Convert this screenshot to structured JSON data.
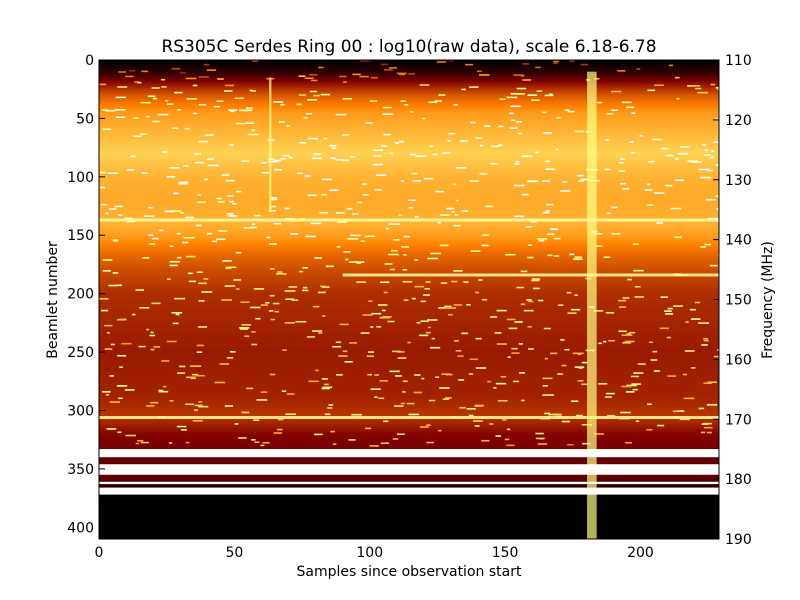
{
  "chart_data": {
    "type": "heatmap",
    "title": "RS305C Serdes Ring 00 : log10(raw data), scale 6.18-6.78",
    "xlabel": "Samples since observation start",
    "ylabel": "Beamlet number",
    "y2label": "Frequency (MHz)",
    "xlim": [
      0,
      229
    ],
    "ylim": [
      0,
      410
    ],
    "y2lim": [
      110,
      190
    ],
    "scale_range": [
      6.18,
      6.78
    ],
    "colormap": "afmhot",
    "x_ticks": [
      0,
      50,
      100,
      150,
      200
    ],
    "y_ticks": [
      0,
      50,
      100,
      150,
      200,
      250,
      300,
      350,
      400
    ],
    "y2_ticks": [
      110,
      120,
      130,
      140,
      150,
      160,
      170,
      180,
      190
    ],
    "row_profile": [
      {
        "beamlet": 0,
        "level": 0.0
      },
      {
        "beamlet": 10,
        "level": 0.08
      },
      {
        "beamlet": 20,
        "level": 0.28
      },
      {
        "beamlet": 30,
        "level": 0.42
      },
      {
        "beamlet": 45,
        "level": 0.55
      },
      {
        "beamlet": 60,
        "level": 0.6
      },
      {
        "beamlet": 80,
        "level": 0.66
      },
      {
        "beamlet": 100,
        "level": 0.6
      },
      {
        "beamlet": 120,
        "level": 0.58
      },
      {
        "beamlet": 140,
        "level": 0.6
      },
      {
        "beamlet": 150,
        "level": 0.56
      },
      {
        "beamlet": 165,
        "level": 0.46
      },
      {
        "beamlet": 180,
        "level": 0.4
      },
      {
        "beamlet": 200,
        "level": 0.34
      },
      {
        "beamlet": 250,
        "level": 0.3
      },
      {
        "beamlet": 290,
        "level": 0.32
      },
      {
        "beamlet": 305,
        "level": 0.36
      },
      {
        "beamlet": 320,
        "level": 0.26
      },
      {
        "beamlet": 330,
        "level": 0.24
      },
      {
        "beamlet": 340,
        "level": 0.18
      },
      {
        "beamlet": 355,
        "level": 0.22
      },
      {
        "beamlet": 365,
        "level": 0.08
      },
      {
        "beamlet": 376,
        "level": 0.0
      },
      {
        "beamlet": 410,
        "level": 0.0
      }
    ],
    "saturated_bands": [
      {
        "from": 333,
        "to": 340
      },
      {
        "from": 346,
        "to": 355
      },
      {
        "from": 361,
        "to": 363
      },
      {
        "from": 366,
        "to": 372
      }
    ],
    "interference_columns": [
      {
        "sample": 181,
        "from": 10,
        "to": 410,
        "width": 4
      },
      {
        "sample": 63,
        "from": 15,
        "to": 130,
        "width": 1
      }
    ],
    "interference_rows": [
      {
        "beamlet": 137,
        "from": 0,
        "to": 229
      },
      {
        "beamlet": 184,
        "from": 90,
        "to": 229
      },
      {
        "beamlet": 306,
        "from": 0,
        "to": 229
      }
    ]
  }
}
